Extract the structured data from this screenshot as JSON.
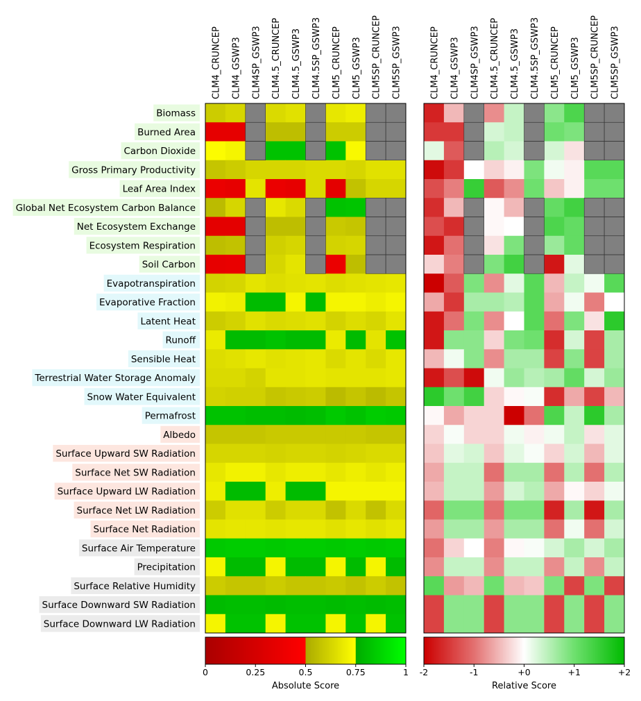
{
  "chart_data": {
    "type": "heatmap",
    "models": [
      "CLM4_CRUNCEP",
      "CLM4_GSWP3",
      "CLM4SP_GSWP3",
      "CLM4.5_CRUNCEP",
      "CLM4.5_GSWP3",
      "CLM4.5SP_GSWP3",
      "CLM5_CRUNCEP",
      "CLM5_GSWP3",
      "CLM5SP_CRUNCEP",
      "CLM5SP_GSWP3"
    ],
    "variables": [
      {
        "name": "Biomass",
        "group": "carbon"
      },
      {
        "name": "Burned Area",
        "group": "carbon"
      },
      {
        "name": "Carbon Dioxide",
        "group": "carbon"
      },
      {
        "name": "Gross Primary Productivity",
        "group": "carbon"
      },
      {
        "name": "Leaf Area Index",
        "group": "carbon"
      },
      {
        "name": "Global Net Ecosystem Carbon Balance",
        "group": "carbon"
      },
      {
        "name": "Net Ecosystem Exchange",
        "group": "carbon"
      },
      {
        "name": "Ecosystem Respiration",
        "group": "carbon"
      },
      {
        "name": "Soil Carbon",
        "group": "carbon"
      },
      {
        "name": "Evapotranspiration",
        "group": "hydrology"
      },
      {
        "name": "Evaporative Fraction",
        "group": "hydrology"
      },
      {
        "name": "Latent Heat",
        "group": "hydrology"
      },
      {
        "name": "Runoff",
        "group": "hydrology"
      },
      {
        "name": "Sensible Heat",
        "group": "hydrology"
      },
      {
        "name": "Terrestrial Water Storage Anomaly",
        "group": "hydrology"
      },
      {
        "name": "Snow Water Equivalent",
        "group": "hydrology"
      },
      {
        "name": "Permafrost",
        "group": "hydrology"
      },
      {
        "name": "Albedo",
        "group": "radiation"
      },
      {
        "name": "Surface Upward SW Radiation",
        "group": "radiation"
      },
      {
        "name": "Surface Net SW Radiation",
        "group": "radiation"
      },
      {
        "name": "Surface Upward LW Radiation",
        "group": "radiation"
      },
      {
        "name": "Surface Net LW Radiation",
        "group": "radiation"
      },
      {
        "name": "Surface Net Radiation",
        "group": "radiation"
      },
      {
        "name": "Surface Air Temperature",
        "group": "forcing"
      },
      {
        "name": "Precipitation",
        "group": "forcing"
      },
      {
        "name": "Surface Relative Humidity",
        "group": "forcing"
      },
      {
        "name": "Surface Downward SW Radiation",
        "group": "forcing"
      },
      {
        "name": "Surface Downward LW Radiation",
        "group": "forcing"
      }
    ],
    "group_colors": {
      "carbon": "#e8fbe0",
      "hydrology": "#e2f8fb",
      "radiation": "#fde6df",
      "forcing": "#ebebeb"
    },
    "missing_color": "#808080",
    "absolute_scores": [
      [
        0.6,
        0.63,
        null,
        0.64,
        0.66,
        null,
        0.68,
        0.7,
        null,
        null
      ],
      [
        0.35,
        0.35,
        null,
        0.56,
        0.56,
        null,
        0.6,
        0.6,
        null,
        null
      ],
      [
        0.74,
        0.72,
        null,
        0.82,
        0.82,
        null,
        0.82,
        0.73,
        null,
        null
      ],
      [
        0.58,
        0.6,
        0.63,
        0.63,
        0.63,
        0.64,
        0.64,
        0.63,
        0.66,
        0.66
      ],
      [
        0.38,
        0.36,
        0.67,
        0.38,
        0.36,
        0.64,
        0.34,
        0.57,
        0.63,
        0.63
      ],
      [
        0.55,
        0.63,
        null,
        0.68,
        0.64,
        null,
        0.82,
        0.83,
        null,
        null
      ],
      [
        0.34,
        0.34,
        null,
        0.56,
        0.56,
        null,
        0.59,
        0.58,
        null,
        null
      ],
      [
        0.56,
        0.57,
        null,
        0.61,
        0.63,
        null,
        0.62,
        0.63,
        null,
        null
      ],
      [
        0.36,
        0.37,
        null,
        0.63,
        0.67,
        null,
        0.38,
        0.56,
        null,
        null
      ],
      [
        0.62,
        0.63,
        0.67,
        0.65,
        0.66,
        0.67,
        0.65,
        0.66,
        0.67,
        0.68
      ],
      [
        0.71,
        0.7,
        0.8,
        0.8,
        0.72,
        0.8,
        0.72,
        0.72,
        0.7,
        0.72
      ],
      [
        0.6,
        0.62,
        0.66,
        0.64,
        0.65,
        0.66,
        0.62,
        0.65,
        0.63,
        0.67
      ],
      [
        0.69,
        0.8,
        0.8,
        0.82,
        0.8,
        0.8,
        0.69,
        0.8,
        0.67,
        0.82
      ],
      [
        0.65,
        0.66,
        0.68,
        0.66,
        0.67,
        0.68,
        0.64,
        0.67,
        0.64,
        0.68
      ],
      [
        0.64,
        0.64,
        0.62,
        0.67,
        0.67,
        0.68,
        0.67,
        0.67,
        0.67,
        0.68
      ],
      [
        0.62,
        0.61,
        0.61,
        0.58,
        0.59,
        0.6,
        0.55,
        0.58,
        0.55,
        0.58
      ],
      [
        0.82,
        0.82,
        0.81,
        0.81,
        0.8,
        0.81,
        0.84,
        0.82,
        0.85,
        0.84
      ],
      [
        0.58,
        0.58,
        0.58,
        0.59,
        0.59,
        0.59,
        0.59,
        0.59,
        0.58,
        0.58
      ],
      [
        0.63,
        0.63,
        0.63,
        0.62,
        0.63,
        0.63,
        0.62,
        0.63,
        0.64,
        0.64
      ],
      [
        0.68,
        0.71,
        0.71,
        0.68,
        0.7,
        0.7,
        0.68,
        0.7,
        0.68,
        0.7
      ],
      [
        0.7,
        0.8,
        0.8,
        0.7,
        0.8,
        0.8,
        0.72,
        0.72,
        0.72,
        0.72
      ],
      [
        0.6,
        0.66,
        0.66,
        0.6,
        0.64,
        0.64,
        0.57,
        0.64,
        0.57,
        0.64
      ],
      [
        0.67,
        0.68,
        0.68,
        0.67,
        0.68,
        0.68,
        0.66,
        0.68,
        0.66,
        0.68
      ],
      [
        0.84,
        0.85,
        0.85,
        0.84,
        0.85,
        0.85,
        0.84,
        0.85,
        0.84,
        0.85
      ],
      [
        0.72,
        0.8,
        0.8,
        0.72,
        0.8,
        0.8,
        0.72,
        0.8,
        0.72,
        0.8
      ],
      [
        0.6,
        0.58,
        0.58,
        0.6,
        0.58,
        0.58,
        0.59,
        0.57,
        0.6,
        0.57
      ],
      [
        0.8,
        0.81,
        0.81,
        0.8,
        0.81,
        0.81,
        0.8,
        0.81,
        0.8,
        0.81
      ],
      [
        0.72,
        0.82,
        0.82,
        0.72,
        0.82,
        0.82,
        0.72,
        0.82,
        0.72,
        0.82
      ]
    ],
    "relative_scores": [
      [
        -1.7,
        -0.5,
        null,
        -0.8,
        0.4,
        null,
        0.8,
        1.3,
        null,
        null
      ],
      [
        -1.5,
        -1.5,
        null,
        0.3,
        0.4,
        null,
        1.0,
        0.9,
        null,
        null
      ],
      [
        0.2,
        -1.2,
        null,
        0.5,
        0.3,
        null,
        0.3,
        -0.2,
        null,
        null
      ],
      [
        -1.9,
        -1.5,
        0.0,
        -0.3,
        -0.1,
        0.9,
        0.1,
        -0.1,
        1.2,
        1.2
      ],
      [
        -1.3,
        -0.9,
        1.5,
        -1.2,
        -0.8,
        1.0,
        -0.4,
        -0.1,
        1.0,
        1.0
      ],
      [
        -1.6,
        -0.5,
        null,
        -0.05,
        -0.5,
        null,
        1.1,
        1.4,
        null,
        null
      ],
      [
        -1.3,
        -1.6,
        null,
        -0.05,
        0.0,
        null,
        1.3,
        1.1,
        null,
        null
      ],
      [
        -1.8,
        -1.0,
        null,
        -0.2,
        0.9,
        null,
        0.7,
        1.1,
        null,
        null
      ],
      [
        -0.3,
        -0.9,
        null,
        0.9,
        1.4,
        null,
        -1.8,
        0.2,
        null,
        null
      ],
      [
        -2.0,
        -1.2,
        0.9,
        -0.8,
        0.2,
        1.2,
        -0.5,
        0.4,
        0.1,
        1.2
      ],
      [
        -0.6,
        -1.5,
        0.6,
        0.6,
        0.5,
        1.2,
        -0.6,
        0.1,
        -0.9,
        0.0
      ],
      [
        -1.8,
        -1.0,
        0.9,
        -0.8,
        0.0,
        1.2,
        -1.0,
        0.9,
        -0.2,
        1.6
      ],
      [
        -1.8,
        0.8,
        0.8,
        -0.3,
        0.9,
        1.0,
        -1.6,
        0.3,
        -1.4,
        0.6
      ],
      [
        -0.5,
        0.1,
        0.8,
        -0.8,
        0.6,
        0.6,
        -1.4,
        0.8,
        -1.4,
        0.6
      ],
      [
        -1.8,
        -1.3,
        -1.9,
        0.1,
        0.7,
        0.5,
        0.6,
        1.1,
        0.3,
        0.7
      ],
      [
        1.6,
        1.0,
        1.4,
        -0.3,
        -0.05,
        0.05,
        -1.6,
        -0.6,
        -1.4,
        -0.5
      ],
      [
        -0.05,
        -0.6,
        -0.3,
        -0.3,
        -2.0,
        -1.0,
        1.3,
        0.4,
        1.6,
        0.6
      ],
      [
        -0.3,
        0.05,
        -0.3,
        -0.3,
        0.1,
        -0.1,
        0.1,
        0.4,
        -0.2,
        0.2
      ],
      [
        -0.4,
        0.2,
        0.3,
        -0.4,
        0.2,
        0.05,
        -0.3,
        0.3,
        -0.5,
        0.2
      ],
      [
        -0.6,
        0.4,
        0.4,
        -1.0,
        0.6,
        0.6,
        -1.0,
        0.5,
        -1.0,
        0.5
      ],
      [
        -0.5,
        0.4,
        0.4,
        -0.7,
        0.3,
        0.5,
        -0.6,
        -0.05,
        -0.3,
        0.1
      ],
      [
        -1.1,
        0.9,
        0.9,
        -1.0,
        0.9,
        0.9,
        -1.7,
        0.6,
        -1.8,
        0.6
      ],
      [
        -0.7,
        0.6,
        0.6,
        -0.7,
        0.6,
        0.6,
        -1.0,
        0.1,
        -1.0,
        0.3
      ],
      [
        -1.0,
        -0.3,
        0.0,
        -0.9,
        -0.05,
        0.05,
        0.3,
        0.6,
        0.3,
        0.6
      ],
      [
        -0.8,
        0.4,
        0.4,
        -0.8,
        0.4,
        0.4,
        -0.8,
        0.4,
        -0.8,
        0.4
      ],
      [
        1.2,
        -0.7,
        -0.5,
        1.0,
        -0.5,
        -0.4,
        0.9,
        -1.4,
        0.9,
        -1.4
      ],
      [
        -1.4,
        0.8,
        0.8,
        -1.4,
        0.8,
        0.8,
        -1.4,
        0.8,
        -1.4,
        0.8
      ],
      [
        -1.4,
        0.8,
        0.8,
        -1.4,
        0.8,
        0.8,
        -1.4,
        0.8,
        -1.4,
        0.8
      ]
    ],
    "colorbars": {
      "absolute": {
        "label": "Absolute Score",
        "range": [
          0,
          1
        ],
        "ticks": [
          {
            "value": 0,
            "label": "0"
          },
          {
            "value": 0.25,
            "label": "0.25"
          },
          {
            "value": 0.5,
            "label": "0.5"
          },
          {
            "value": 0.75,
            "label": "0.75"
          },
          {
            "value": 1,
            "label": "1"
          }
        ],
        "stops": [
          {
            "value": 0.0,
            "color": "#aa0000"
          },
          {
            "value": 0.499,
            "color": "#ff0000"
          },
          {
            "value": 0.5,
            "color": "#aaaa00"
          },
          {
            "value": 0.749,
            "color": "#ffff00"
          },
          {
            "value": 0.75,
            "color": "#00aa00"
          },
          {
            "value": 1.0,
            "color": "#00ff00"
          }
        ]
      },
      "relative": {
        "label": "Relative Score",
        "range": [
          -2,
          2
        ],
        "ticks": [
          {
            "value": -2,
            "label": "-2"
          },
          {
            "value": -1,
            "label": "-1"
          },
          {
            "value": 0,
            "label": "+0"
          },
          {
            "value": 1,
            "label": "+1"
          },
          {
            "value": 2,
            "label": "+2"
          }
        ],
        "stops": [
          {
            "value": -2,
            "color": "#cc0000"
          },
          {
            "value": -1,
            "color": "#e37070"
          },
          {
            "value": 0,
            "color": "#ffffff"
          },
          {
            "value": 1,
            "color": "#6ee06e"
          },
          {
            "value": 2,
            "color": "#00bb00"
          }
        ]
      }
    }
  }
}
